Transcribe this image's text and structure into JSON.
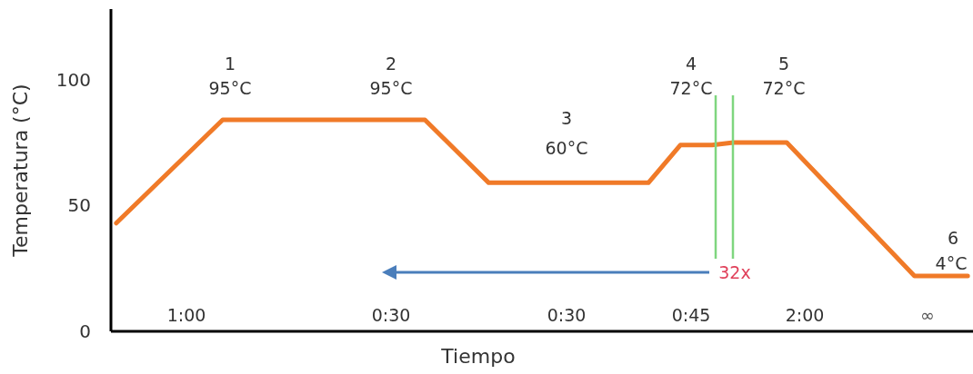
{
  "chart_data": {
    "type": "line",
    "xlabel": "Tiempo",
    "ylabel": "Temperatura (°C)",
    "ylim": [
      0,
      128
    ],
    "yticks": [
      0,
      50,
      100
    ],
    "tick_labels": "y",
    "grid": false,
    "marker": "none",
    "line_style": "solid",
    "categories": [
      null,
      null,
      null,
      null,
      null,
      null,
      null,
      null,
      null,
      null,
      null,
      null,
      null,
      null,
      null,
      null,
      null,
      null,
      null,
      null,
      null,
      null,
      null,
      null,
      null,
      null,
      null,
      null,
      null,
      null,
      null,
      null,
      null,
      null,
      null,
      null,
      null,
      null,
      null,
      null,
      null,
      null,
      null,
      null,
      null,
      null,
      null,
      null,
      null,
      null,
      null,
      null,
      null,
      null,
      null,
      null,
      null,
      null,
      null,
      null,
      null,
      null,
      null,
      null,
      null,
      null,
      null,
      null,
      null,
      null,
      null,
      null,
      null,
      null,
      null,
      null,
      null,
      null,
      null,
      null,
      null
    ],
    "series": [
      {
        "color": "#f07a28",
        "values": [
          43,
          null,
          null,
          null,
          null,
          null,
          null,
          null,
          null,
          null,
          84,
          null,
          null,
          null,
          null,
          null,
          null,
          null,
          null,
          null,
          null,
          null,
          null,
          null,
          null,
          null,
          null,
          null,
          null,
          84,
          null,
          null,
          null,
          null,
          null,
          59,
          null,
          null,
          null,
          null,
          null,
          null,
          null,
          null,
          null,
          null,
          null,
          null,
          null,
          null,
          59,
          null,
          null,
          74,
          null,
          null,
          74,
          null,
          75,
          null,
          null,
          null,
          null,
          75,
          null,
          null,
          null,
          null,
          null,
          null,
          null,
          null,
          null,
          null,
          null,
          22,
          null,
          null,
          null,
          null,
          22
        ]
      }
    ],
    "annotations": [
      "1",
      "95°C",
      "2",
      "95°C",
      "3",
      "60°C",
      "4",
      "72°C",
      "5",
      "72°C",
      "6",
      "4°C",
      "1:00",
      "0:30",
      "0:30",
      "0:45",
      "2:00",
      "∞",
      "32x"
    ]
  }
}
